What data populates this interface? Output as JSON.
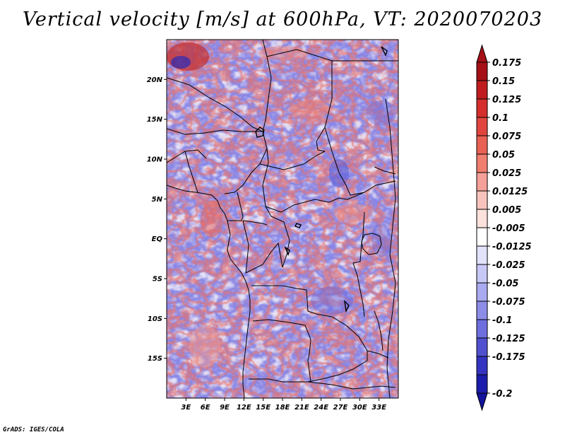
{
  "title": "Vertical velocity [m/s] at 600hPa, VT: 2020070203",
  "footer": "GrADS: IGES/COLA",
  "map": {
    "lon_range": [
      0,
      36
    ],
    "lat_range": [
      -20,
      25
    ],
    "lat_ticks": [
      {
        "value": 20,
        "label": "20N"
      },
      {
        "value": 15,
        "label": "15N"
      },
      {
        "value": 10,
        "label": "10N"
      },
      {
        "value": 5,
        "label": "5N"
      },
      {
        "value": 0,
        "label": "EQ"
      },
      {
        "value": -5,
        "label": "5S"
      },
      {
        "value": -10,
        "label": "10S"
      },
      {
        "value": -15,
        "label": "15S"
      }
    ],
    "lon_ticks": [
      {
        "value": 3,
        "label": "3E"
      },
      {
        "value": 6,
        "label": "6E"
      },
      {
        "value": 9,
        "label": "9E"
      },
      {
        "value": 12,
        "label": "12E"
      },
      {
        "value": 15,
        "label": "15E"
      },
      {
        "value": 18,
        "label": "18E"
      },
      {
        "value": 21,
        "label": "21E"
      },
      {
        "value": 24,
        "label": "24E"
      },
      {
        "value": 27,
        "label": "27E"
      },
      {
        "value": 30,
        "label": "30E"
      },
      {
        "value": 33,
        "label": "33E"
      }
    ]
  },
  "colorbar": {
    "levels": [
      {
        "label": "0.175",
        "color": "#a50f15"
      },
      {
        "label": "0.15",
        "color": "#c01c1f"
      },
      {
        "label": "0.125",
        "color": "#d42f2c"
      },
      {
        "label": "0.1",
        "color": "#e0463e"
      },
      {
        "label": "0.075",
        "color": "#e96153"
      },
      {
        "label": "0.05",
        "color": "#f07e6e"
      },
      {
        "label": "0.025",
        "color": "#f5a098"
      },
      {
        "label": "0.0125",
        "color": "#f9c3bd"
      },
      {
        "label": "0.005",
        "color": "#fce1dd"
      },
      {
        "label": "-0.005",
        "color": "#ffffff"
      },
      {
        "label": "-0.0125",
        "color": "#e2e2fb"
      },
      {
        "label": "-0.025",
        "color": "#c8c8f6"
      },
      {
        "label": "-0.05",
        "color": "#aaaaf0"
      },
      {
        "label": "-0.075",
        "color": "#8d8de8"
      },
      {
        "label": "-0.1",
        "color": "#6e6ede"
      },
      {
        "label": "-0.125",
        "color": "#5151d0"
      },
      {
        "label": "-0.175",
        "color": "#3434c0"
      },
      {
        "label": "-0.2",
        "color": "#1c1cac"
      }
    ],
    "top_color": "#a50f15",
    "bottom_color": "#12129a"
  }
}
